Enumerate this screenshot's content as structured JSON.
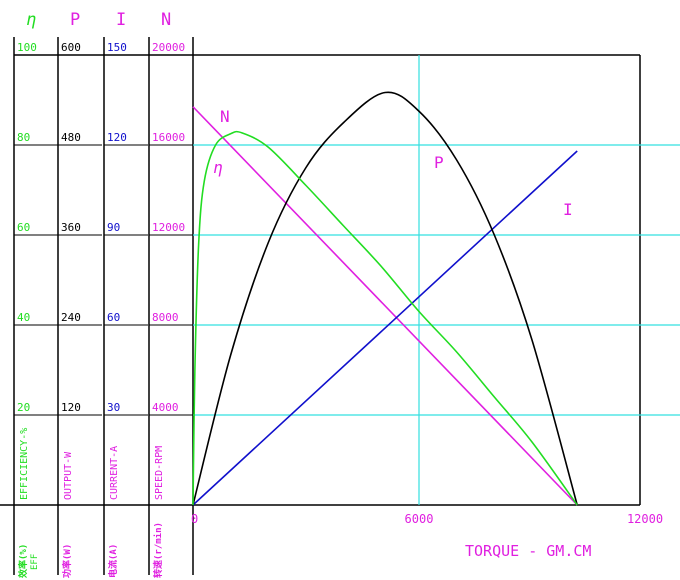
{
  "chart_data": {
    "type": "line",
    "xlabel": "TORQUE - GM.CM",
    "x_ticks": [
      "0",
      "6000",
      "12000"
    ],
    "xlim": [
      0,
      12000
    ],
    "axes": [
      {
        "key": "eff",
        "symbol": "η",
        "label": "EFFICIENCY-%",
        "cn_label": "效率(%)",
        "cn_sub": "EFF",
        "color": "#22dd22",
        "ticks": [
          "100",
          "80",
          "60",
          "40",
          "20"
        ],
        "ylim": [
          0,
          100
        ]
      },
      {
        "key": "out",
        "symbol": "P",
        "label": "OUTPUT-W",
        "cn_label": "功率(W)",
        "cn_sub": "",
        "color": "#e020e0",
        "tick_color": "#000000",
        "ticks": [
          "600",
          "480",
          "360",
          "240",
          "120"
        ],
        "ylim": [
          0,
          600
        ]
      },
      {
        "key": "cur",
        "symbol": "I",
        "label": "CURRENT-A",
        "cn_label": "电流(A)",
        "cn_sub": "",
        "color": "#e020e0",
        "tick_color": "#1010cc",
        "ticks": [
          "150",
          "120",
          "90",
          "60",
          "30"
        ],
        "ylim": [
          0,
          150
        ]
      },
      {
        "key": "spd",
        "symbol": "N",
        "label": "SPEED-RPM",
        "cn_label": "转速(r/min)",
        "cn_sub": "",
        "color": "#e020e0",
        "ticks": [
          "20000",
          "16000",
          "12000",
          "8000",
          "4000"
        ],
        "ylim": [
          0,
          20000
        ]
      }
    ],
    "series": [
      {
        "name": "N",
        "axis": "spd",
        "color": "#e020e0",
        "x": [
          0,
          10200
        ],
        "y": [
          17700,
          0
        ]
      },
      {
        "name": "I",
        "axis": "cur",
        "color": "#1010cc",
        "x": [
          0,
          10200
        ],
        "y": [
          0,
          118
        ]
      },
      {
        "name": "P",
        "axis": "out",
        "color": "#000000",
        "x": [
          0,
          1000,
          2000,
          3000,
          4000,
          5100,
          6000,
          7000,
          8000,
          9000,
          10200
        ],
        "y": [
          0,
          200,
          350,
          450,
          510,
          550,
          525,
          460,
          360,
          220,
          0
        ]
      },
      {
        "name": "η",
        "axis": "eff",
        "color": "#22dd22",
        "x": [
          0,
          50,
          150,
          300,
          600,
          1000,
          1300,
          2000,
          3000,
          4000,
          5000,
          6000,
          7000,
          8000,
          9000,
          10200
        ],
        "y": [
          0,
          30,
          58,
          72,
          80,
          82.5,
          82.7,
          79.5,
          71,
          62,
          53,
          43,
          34,
          24,
          14,
          0
        ]
      }
    ]
  }
}
